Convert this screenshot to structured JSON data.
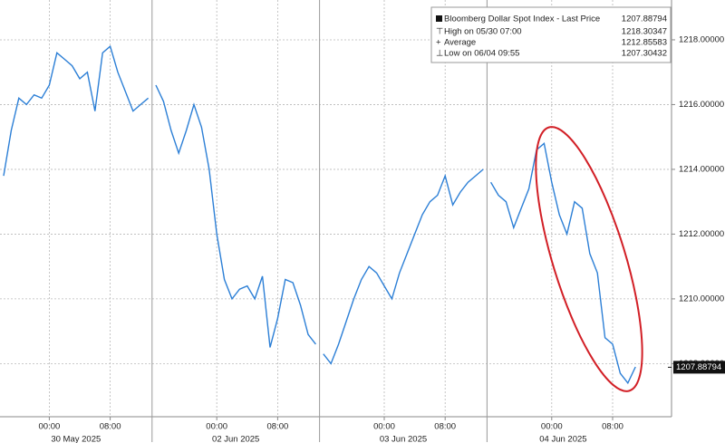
{
  "chart_data": {
    "type": "line",
    "series_name": "Bloomberg Dollar Spot Index - Last Price",
    "last_value": 1207.88794,
    "color": "#2c7fd6",
    "stats": [
      {
        "label": "High on 05/30 07:00",
        "value": 1218.30347
      },
      {
        "label": "Average",
        "value": 1212.85583
      },
      {
        "label": "Low on 06/04 09:55",
        "value": 1207.30432
      }
    ],
    "ylim": [
      1206.36,
      1219.23
    ],
    "yticks": [
      {
        "value": 1208,
        "label": "1208.00000"
      },
      {
        "value": 1210,
        "label": "1210.00000"
      },
      {
        "value": 1212,
        "label": "1212.00000"
      },
      {
        "value": 1214,
        "label": "1214.00000"
      },
      {
        "value": 1216,
        "label": "1216.00000"
      },
      {
        "value": 1218,
        "label": "1218.00000"
      }
    ],
    "grid": true,
    "days": [
      {
        "label": "30 May 2025",
        "categories": [
          null,
          null,
          null,
          null,
          null,
          null,
          "00:00",
          null,
          null,
          null,
          null,
          null,
          null,
          null,
          "08:00",
          null,
          null,
          null,
          null,
          null
        ],
        "values": [
          1213.8,
          1215.2,
          1216.2,
          1216.0,
          1216.3,
          1216.2,
          1216.6,
          1217.6,
          1217.4,
          1217.2,
          1216.8,
          1217.0,
          1215.8,
          1217.6,
          1217.8,
          1217.0,
          1216.4,
          1215.8,
          1216.0,
          1216.2
        ]
      },
      {
        "label": "02 Jun 2025",
        "categories": [
          null,
          null,
          null,
          null,
          null,
          null,
          null,
          null,
          "00:00",
          null,
          null,
          null,
          null,
          null,
          null,
          null,
          "08:00",
          null,
          null,
          null,
          null,
          null
        ],
        "values": [
          1216.6,
          1216.1,
          1215.2,
          1214.5,
          1215.2,
          1216.0,
          1215.3,
          1214.0,
          1212.0,
          1210.6,
          1210.0,
          1210.3,
          1210.4,
          1210.0,
          1210.7,
          1208.5,
          1209.4,
          1210.6,
          1210.5,
          1209.8,
          1208.9,
          1208.6
        ]
      },
      {
        "label": "03 Jun 2025",
        "categories": [
          null,
          null,
          null,
          null,
          null,
          null,
          null,
          null,
          "00:00",
          null,
          null,
          null,
          null,
          null,
          null,
          null,
          "08:00",
          null,
          null,
          null,
          null,
          null
        ],
        "values": [
          1208.3,
          1208.0,
          1208.6,
          1209.3,
          1210.0,
          1210.6,
          1211.0,
          1210.8,
          1210.4,
          1210.0,
          1210.8,
          1211.4,
          1212.0,
          1212.6,
          1213.0,
          1213.2,
          1213.8,
          1212.9,
          1213.3,
          1213.6,
          1213.8,
          1214.0
        ]
      },
      {
        "label": "04 Jun 2025",
        "categories": [
          null,
          null,
          null,
          null,
          null,
          null,
          null,
          null,
          "00:00",
          null,
          null,
          null,
          null,
          null,
          null,
          null,
          "08:00",
          null,
          null,
          null
        ],
        "values": [
          1213.6,
          1213.2,
          1213.0,
          1212.2,
          1212.8,
          1213.4,
          1214.6,
          1214.8,
          1213.6,
          1212.6,
          1212.0,
          1213.0,
          1212.8,
          1211.4,
          1210.8,
          1208.8,
          1208.6,
          1207.7,
          1207.4,
          1207.9
        ]
      }
    ]
  }
}
